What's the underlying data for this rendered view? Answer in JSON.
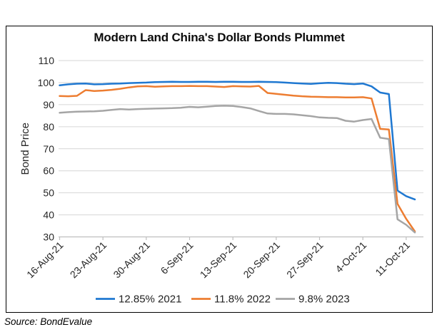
{
  "title": "Modern Land China's Dollar Bonds Plummet",
  "source": "Source: BondEvalue",
  "colors": {
    "series_blue": "#1F78D1",
    "series_orange": "#ED7D31",
    "series_gray": "#A5A5A5",
    "gridline": "#D6D6D6",
    "axis_line": "#BFBFBF",
    "tick_text": "#262626",
    "legend_text": "#222222",
    "border": "#000000"
  },
  "chart_data": {
    "type": "line",
    "title": "Modern Land China's Dollar Bonds Plummet",
    "xlabel": "",
    "ylabel": "Bond Price",
    "ylim": [
      30,
      110
    ],
    "ytick_step": 10,
    "grid": true,
    "legend_position": "bottom",
    "x": [
      "16-Aug-21",
      "17-Aug-21",
      "18-Aug-21",
      "19-Aug-21",
      "20-Aug-21",
      "23-Aug-21",
      "24-Aug-21",
      "25-Aug-21",
      "26-Aug-21",
      "27-Aug-21",
      "30-Aug-21",
      "31-Aug-21",
      "1-Sep-21",
      "2-Sep-21",
      "3-Sep-21",
      "6-Sep-21",
      "7-Sep-21",
      "8-Sep-21",
      "9-Sep-21",
      "10-Sep-21",
      "13-Sep-21",
      "14-Sep-21",
      "15-Sep-21",
      "16-Sep-21",
      "17-Sep-21",
      "20-Sep-21",
      "21-Sep-21",
      "22-Sep-21",
      "23-Sep-21",
      "24-Sep-21",
      "27-Sep-21",
      "28-Sep-21",
      "29-Sep-21",
      "30-Sep-21",
      "1-Oct-21",
      "4-Oct-21",
      "5-Oct-21",
      "6-Oct-21",
      "7-Oct-21",
      "8-Oct-21",
      "11-Oct-21",
      "12-Oct-21"
    ],
    "x_tick_indices": [
      0,
      5,
      10,
      15,
      20,
      25,
      30,
      35,
      40
    ],
    "x_tick_labels": [
      "16-Aug-21",
      "23-Aug-21",
      "30-Aug-21",
      "6-Sep-21",
      "13-Sep-21",
      "20-Sep-21",
      "27-Sep-21",
      "4-Oct-21",
      "11-Oct-21"
    ],
    "series": [
      {
        "name": "12.85% 2021",
        "color": "#1F78D1",
        "values": [
          98.8,
          99.2,
          99.5,
          99.6,
          99.2,
          99.3,
          99.5,
          99.6,
          99.8,
          99.9,
          100.0,
          100.2,
          100.3,
          100.4,
          100.3,
          100.3,
          100.4,
          100.4,
          100.3,
          100.4,
          100.4,
          100.3,
          100.3,
          100.4,
          100.3,
          100.2,
          100.0,
          99.8,
          99.6,
          99.4,
          99.7,
          99.9,
          99.8,
          99.5,
          99.3,
          99.6,
          98.3,
          95.5,
          94.8,
          51.0,
          48.5,
          47.0
        ]
      },
      {
        "name": "11.8% 2022",
        "color": "#ED7D31",
        "values": [
          93.9,
          93.8,
          94.0,
          96.6,
          96.2,
          96.4,
          96.7,
          97.2,
          97.8,
          98.3,
          98.4,
          98.1,
          98.3,
          98.4,
          98.4,
          98.5,
          98.4,
          98.4,
          98.2,
          98.0,
          98.4,
          98.3,
          98.2,
          98.5,
          95.3,
          94.9,
          94.5,
          94.1,
          93.8,
          93.6,
          93.5,
          93.4,
          93.4,
          93.3,
          93.3,
          93.4,
          92.8,
          79.0,
          78.7,
          45.0,
          38.2,
          32.5
        ]
      },
      {
        "name": "9.8% 2023",
        "color": "#A5A5A5",
        "values": [
          86.3,
          86.6,
          86.8,
          86.9,
          87.0,
          87.2,
          87.6,
          88.0,
          87.8,
          88.0,
          88.1,
          88.2,
          88.3,
          88.4,
          88.6,
          89.0,
          88.8,
          89.1,
          89.4,
          89.5,
          89.4,
          88.9,
          88.3,
          87.1,
          86.0,
          85.8,
          85.8,
          85.6,
          85.2,
          84.8,
          84.2,
          84.0,
          83.9,
          82.7,
          82.3,
          83.0,
          83.5,
          75.0,
          74.4,
          38.0,
          35.5,
          32.0
        ]
      }
    ]
  }
}
